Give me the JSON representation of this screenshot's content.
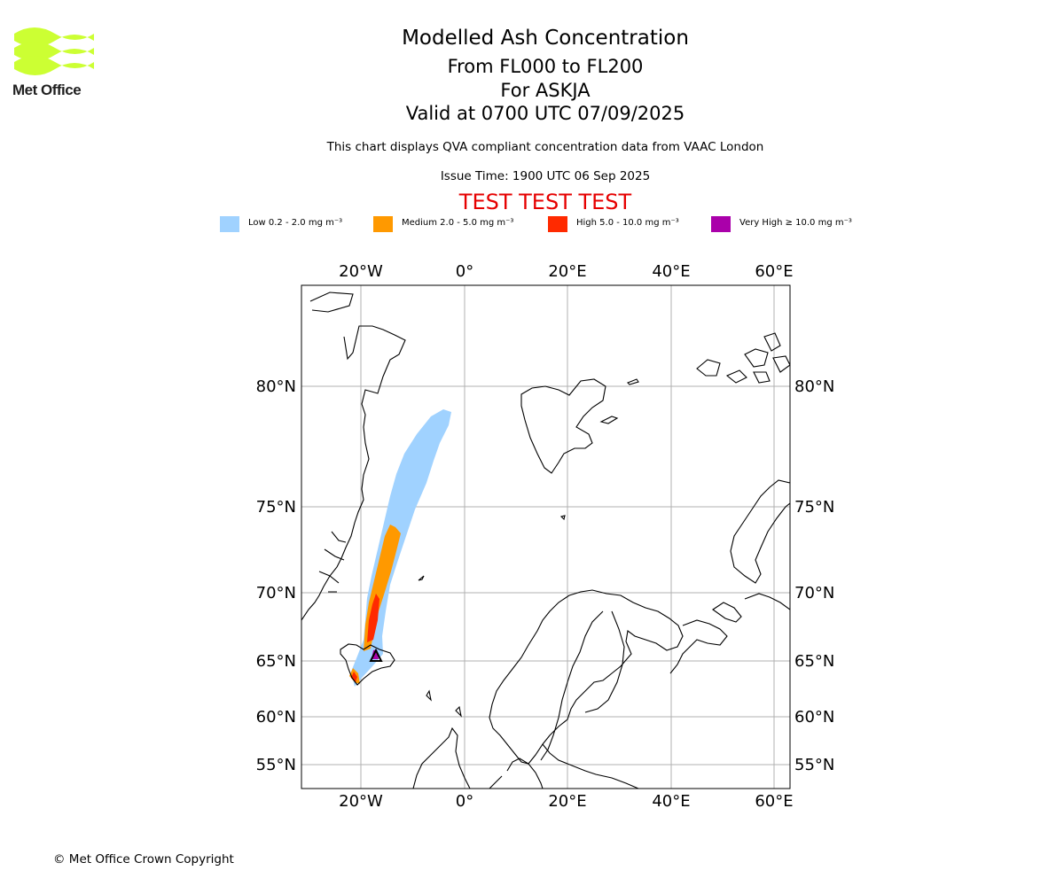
{
  "header": {
    "logo_text": "Met Office",
    "title": "Modelled Ash Concentration",
    "line1": "From FL000 to FL200",
    "line2": "For ASKJA",
    "line3": "Valid at 0700 UTC 07/09/2025",
    "subtitle": "This chart displays QVA compliant concentration data from VAAC London",
    "issue_time": "Issue Time: 1900 UTC 06 Sep 2025",
    "test_banner": "TEST TEST TEST"
  },
  "legend": [
    {
      "label": "Low 0.2 - 2.0 mg m⁻³",
      "color": "#a0d2ff"
    },
    {
      "label": "Medium 2.0 - 5.0 mg m⁻³",
      "color": "#ff9900"
    },
    {
      "label": "High 5.0 - 10.0 mg m⁻³",
      "color": "#ff2a00"
    },
    {
      "label": "Very High ≥ 10.0 mg m⁻³",
      "color": "#aa00aa"
    }
  ],
  "map": {
    "lon_labels": [
      "20°W",
      "0°",
      "20°E",
      "40°E",
      "60°E"
    ],
    "lat_labels": [
      "80°N",
      "75°N",
      "70°N",
      "65°N",
      "60°N",
      "55°N"
    ],
    "volcano": "ASKJA",
    "grid": true
  },
  "footer": {
    "copyright": "© Met Office Crown Copyright"
  },
  "colors": {
    "test_banner": "#e60000",
    "logo_green": "#ccff33",
    "gridline": "#b0b0b0"
  }
}
